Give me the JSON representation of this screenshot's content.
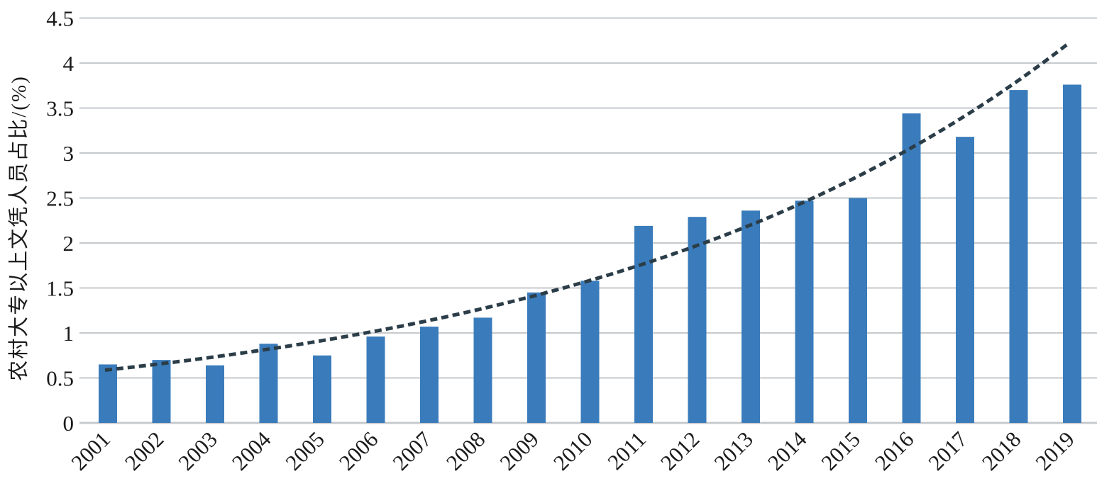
{
  "chart_data": {
    "type": "bar",
    "title": "",
    "ylabel": "农村大专以上文凭人员占比/(%)",
    "xlabel": "",
    "categories": [
      "2001",
      "2002",
      "2003",
      "2004",
      "2005",
      "2006",
      "2007",
      "2008",
      "2009",
      "2010",
      "2011",
      "2012",
      "2013",
      "2014",
      "2015",
      "2016",
      "2017",
      "2018",
      "2019"
    ],
    "values": [
      0.65,
      0.7,
      0.64,
      0.88,
      0.75,
      0.96,
      1.07,
      1.17,
      1.45,
      1.58,
      2.19,
      2.29,
      2.36,
      2.47,
      2.5,
      3.44,
      3.18,
      3.7,
      3.76
    ],
    "ylim": [
      0,
      4.5
    ],
    "yticks": [
      0,
      0.5,
      1,
      1.5,
      2,
      2.5,
      3,
      3.5,
      4,
      4.5
    ],
    "grid": "horizontal gridlines on",
    "legend": "none",
    "trendline": {
      "type": "exponential",
      "style": "dashed",
      "start_value": 0.59,
      "end_value": 4.25
    },
    "colors": {
      "bar": "#3a7cbb",
      "trendline": "#2b3d48",
      "gridline": "#c6cacd",
      "text": "#1b1b1b",
      "background": "#ffffff"
    }
  }
}
